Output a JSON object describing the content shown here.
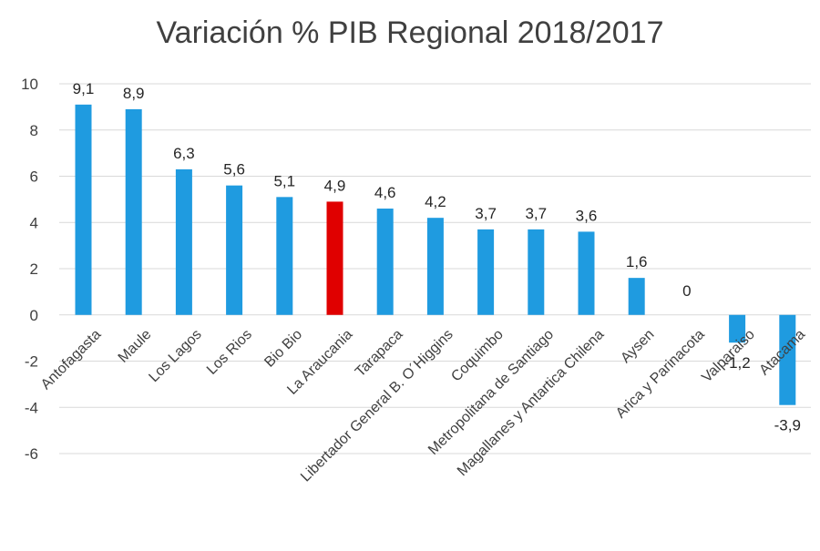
{
  "chart_data": {
    "type": "bar",
    "title": "Variación % PIB Regional 2018/2017",
    "xlabel": "",
    "ylabel": "",
    "ylim": [
      -6,
      10
    ],
    "yticks": [
      10,
      8,
      6,
      4,
      2,
      0,
      -2,
      -4,
      -6
    ],
    "grid": true,
    "legend": "none",
    "colors": {
      "default": "#1f9be0",
      "highlight": "#e00000"
    },
    "highlight_category": "La Araucania",
    "categories": [
      "Antofagasta",
      "Maule",
      "Los Lagos",
      "Los Rios",
      "Bio Bio",
      "La Araucania",
      "Tarapaca",
      "Libertador General B. O´Higgins",
      "Coquimbo",
      "Metropolitana de Santiago",
      "Magallanes y Antartica Chilena",
      "Aysen",
      "Arica y Parinacota",
      "Valparaiso",
      "Atacama"
    ],
    "values": [
      9.1,
      8.9,
      6.3,
      5.6,
      5.1,
      4.9,
      4.6,
      4.2,
      3.7,
      3.7,
      3.6,
      1.6,
      0,
      -1.2,
      -3.9
    ],
    "value_labels": [
      "9,1",
      "8,9",
      "6,3",
      "5,6",
      "5,1",
      "4,9",
      "4,6",
      "4,2",
      "3,7",
      "3,7",
      "3,6",
      "1,6",
      "0",
      "-1,2",
      "-3,9"
    ]
  }
}
